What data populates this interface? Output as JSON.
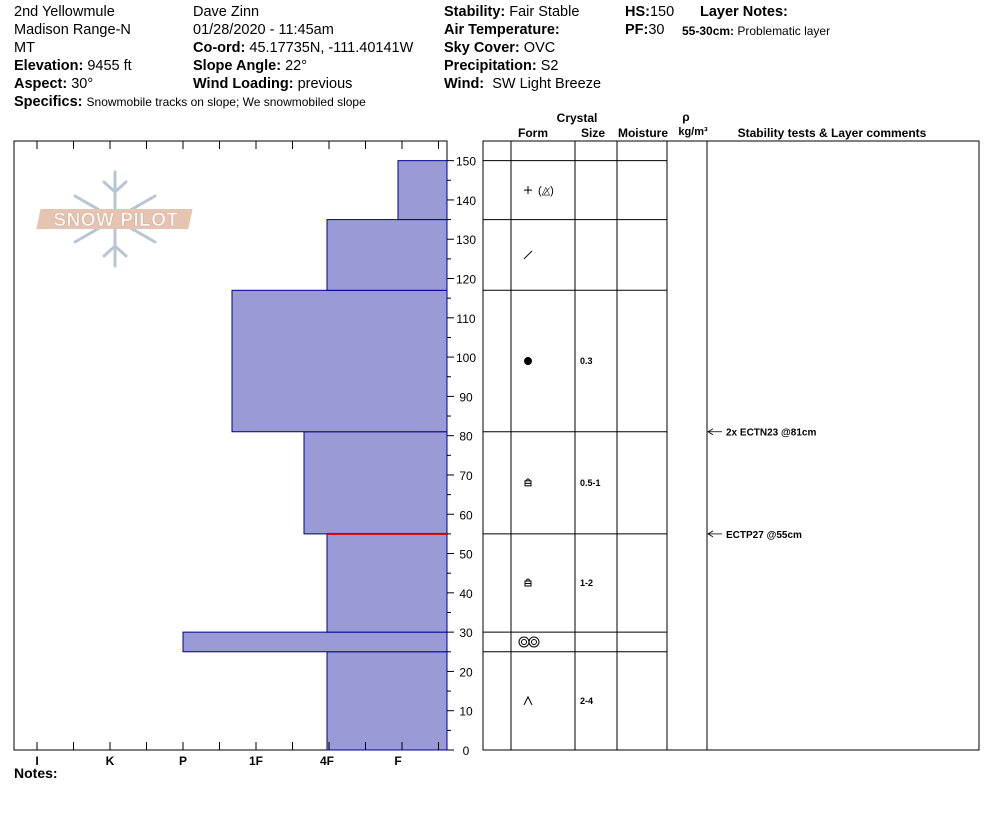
{
  "header": {
    "location_name": "2nd Yellowmule",
    "range": "Madison Range-N",
    "state": "MT",
    "elevation_label": "Elevation:",
    "elevation_value": "9455 ft",
    "aspect_label": "Aspect:",
    "aspect_value": "30°",
    "specifics_label": "Specifics:",
    "specifics_value": "Snowmobile tracks on slope; We snowmobiled slope",
    "observer": "Dave Zinn",
    "datetime": "01/28/2020 - 11:45am",
    "coord_label": "Co-ord:",
    "coord_value": "45.17735N, -111.40141W",
    "slope_label": "Slope Angle:",
    "slope_value": "22°",
    "wind_loading_label": "Wind Loading:",
    "wind_loading_value": "previous",
    "stability_label": "Stability:",
    "stability_value": "Fair Stable",
    "air_temp_label": "Air Temperature:",
    "sky_label": "Sky Cover:",
    "sky_value": "OVC",
    "precip_label": "Precipitation:",
    "precip_value": "S2",
    "wind_label": "Wind:",
    "wind_value": "SW Light Breeze",
    "hs_label": "HS:",
    "hs_value": "150",
    "pf_label": "PF:",
    "pf_value": "30",
    "layer_notes_label": "Layer Notes:",
    "layer_note_range": "55-30cm:",
    "layer_note_text": "Problematic layer"
  },
  "columns": {
    "crystal": "Crystal",
    "form": "Form",
    "size": "Size",
    "moisture": "Moisture",
    "rho": "ρ",
    "density_unit": "kg/m³",
    "stability_tests": "Stability tests & Layer comments"
  },
  "notes_label": "Notes:",
  "watermark": "SNOW PILOT",
  "colors": {
    "layer_fill": "#9a9ad6",
    "layer_stroke": "#00008b",
    "weak_layer": "#cc0000"
  },
  "chart_data": {
    "type": "bar",
    "orientation": "horizontal",
    "y_axis": {
      "range": [
        0,
        150
      ],
      "ticks": [
        0,
        10,
        20,
        30,
        40,
        50,
        60,
        70,
        80,
        90,
        100,
        110,
        120,
        130,
        140,
        150
      ]
    },
    "x_axis": {
      "categories": [
        "I",
        "K",
        "P",
        "1F",
        "4F",
        "F"
      ],
      "direction": "hardness increases to the left"
    },
    "layers": [
      {
        "bottom": 0,
        "top": 25,
        "hardness": "4F",
        "form": "facets_depth_hoar",
        "size": "2-4"
      },
      {
        "bottom": 25,
        "top": 30,
        "hardness": "P",
        "form": "melt_freeze_crust",
        "size": ""
      },
      {
        "bottom": 30,
        "top": 55,
        "hardness": "4F",
        "form": "faceted",
        "size": "1-2"
      },
      {
        "bottom": 55,
        "top": 81,
        "hardness": "1F-",
        "form": "faceted",
        "size": "0.5-1"
      },
      {
        "bottom": 81,
        "top": 117,
        "hardness": "1F+",
        "form": "rounded",
        "size": "0.3"
      },
      {
        "bottom": 117,
        "top": 135,
        "hardness": "4F",
        "form": "decomposing",
        "size": ""
      },
      {
        "bottom": 135,
        "top": 150,
        "hardness": "F",
        "form": "precip_particles",
        "size": ""
      }
    ],
    "weak_layer_height": 55,
    "stability_tests": [
      {
        "height": 81,
        "label": "2x ECTN23 @81cm"
      },
      {
        "height": 55,
        "label": "ECTP27 @55cm"
      }
    ]
  }
}
